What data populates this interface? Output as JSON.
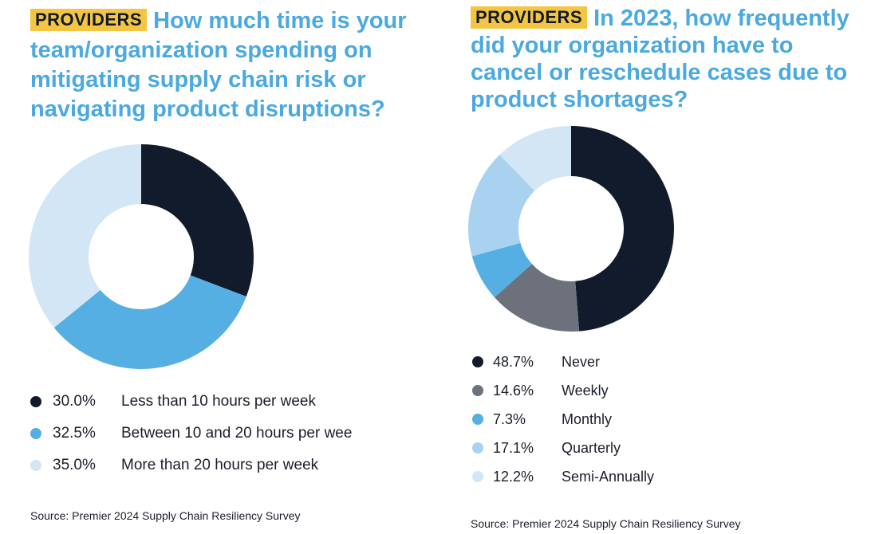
{
  "charts": [
    {
      "badge": "PROVIDERS",
      "title": "How much time is your team/organization spending on mitigating supply chain risk or navigating product disruptions?",
      "source": "Source: Premier 2024 Supply Chain Resiliency Survey",
      "legend": [
        {
          "pct": "30.0%",
          "label": "Less than 10 hours per week"
        },
        {
          "pct": "32.5%",
          "label": "Between 10 and 20 hours per wee"
        },
        {
          "pct": "35.0%",
          "label": "More than 20 hours per week"
        }
      ]
    },
    {
      "badge": "PROVIDERS",
      "title": "In 2023, how frequently did your organization have to cancel or reschedule cases due to product shortages?",
      "source": "Source: Premier 2024 Supply Chain Resiliency Survey",
      "legend": [
        {
          "pct": "48.7%",
          "label": "Never"
        },
        {
          "pct": "14.6%",
          "label": "Weekly"
        },
        {
          "pct": "7.3%",
          "label": "Monthly"
        },
        {
          "pct": "17.1%",
          "label": "Quarterly"
        },
        {
          "pct": "12.2%",
          "label": "Semi-Annually"
        }
      ]
    }
  ],
  "chart_data": [
    {
      "type": "pie",
      "title": "How much time is your team/organization spending on mitigating supply chain risk or navigating product disruptions?",
      "categories": [
        "Less than 10 hours per week",
        "Between 10 and 20 hours per wee",
        "More than 20 hours per week"
      ],
      "values": [
        30.0,
        32.5,
        35.0
      ],
      "colors": [
        "#111b2b",
        "#55afe2",
        "#d3e6f5"
      ],
      "legend": "bottom",
      "donut": true
    },
    {
      "type": "pie",
      "title": "In 2023, how frequently did your organization have to cancel or reschedule cases due to product shortages?",
      "categories": [
        "Never",
        "Weekly",
        "Monthly",
        "Quarterly",
        "Semi-Annually"
      ],
      "values": [
        48.7,
        14.6,
        7.3,
        17.1,
        12.2
      ],
      "colors": [
        "#111b2b",
        "#6c717c",
        "#55afe2",
        "#a8d2ef",
        "#d3e6f5"
      ],
      "legend": "bottom",
      "donut": true
    }
  ]
}
